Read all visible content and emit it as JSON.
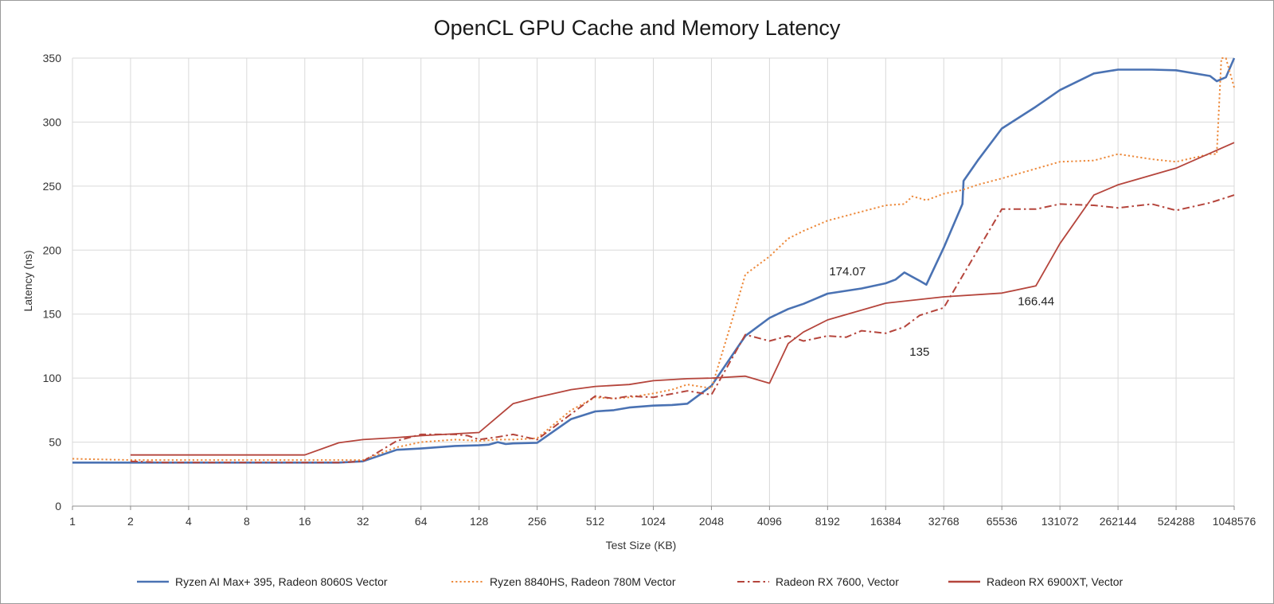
{
  "chart_data": {
    "type": "line",
    "title": "OpenCL GPU Cache and Memory Latency",
    "xlabel": "Test Size (KB)",
    "ylabel": "Latency (ns)",
    "xscale": "log2",
    "xlim": [
      1,
      1048576
    ],
    "ylim": [
      0,
      350
    ],
    "yticks": [
      0,
      50,
      100,
      150,
      200,
      250,
      300,
      350
    ],
    "xticks": [
      1,
      2,
      4,
      8,
      16,
      32,
      64,
      128,
      256,
      512,
      1024,
      2048,
      4096,
      8192,
      16384,
      32768,
      65536,
      131072,
      262144,
      524288,
      1048576
    ],
    "xtick_labels": [
      "1",
      "2",
      "4",
      "8",
      "16",
      "32",
      "64",
      "128",
      "256",
      "512",
      "1024",
      "2048",
      "4096",
      "8192",
      "16384",
      "32768",
      "65536",
      "131072",
      "262144",
      "524288",
      "1048576"
    ],
    "grid": true,
    "legend_position": "bottom",
    "series": [
      {
        "name": "Ryzen AI Max+ 395, Radeon 8060S Vector",
        "color": "#4a72b3",
        "style": "solid",
        "x": [
          1,
          2,
          4,
          8,
          16,
          24,
          32,
          48,
          64,
          96,
          128,
          144,
          160,
          176,
          192,
          256,
          384,
          512,
          640,
          768,
          1024,
          1280,
          1536,
          2048,
          3072,
          4096,
          5120,
          6144,
          8192,
          12288,
          16384,
          18432,
          20480,
          24576,
          26624,
          32768,
          40960,
          41500,
          49152,
          65536,
          98304,
          131072,
          196608,
          262144,
          393216,
          524288,
          786432,
          851968,
          950000,
          1048576
        ],
        "y": [
          34,
          34,
          34,
          34,
          34,
          34,
          35,
          44,
          45,
          47,
          47.5,
          48,
          50,
          48.5,
          49,
          49.5,
          68,
          74,
          75,
          77,
          78.5,
          79,
          80,
          94,
          133,
          147,
          154,
          158,
          166,
          170,
          174.07,
          177,
          182.5,
          176,
          173,
          202,
          236,
          254,
          270,
          295,
          312,
          325,
          338,
          341,
          341,
          340.5,
          336,
          332,
          335,
          350
        ]
      },
      {
        "name": "Ryzen 8840HS, Radeon 780M Vector",
        "color": "#ed8a3c",
        "style": "dotted",
        "x": [
          1,
          2,
          4,
          8,
          16,
          24,
          32,
          48,
          64,
          96,
          128,
          160,
          192,
          256,
          384,
          512,
          640,
          768,
          1024,
          1280,
          1536,
          2048,
          2560,
          3072,
          4096,
          5120,
          6144,
          8192,
          12288,
          16384,
          20480,
          22528,
          26624,
          32768,
          40960,
          49152,
          65536,
          131072,
          196608,
          262144,
          393216,
          524288,
          786432,
          851968,
          900000,
          950000,
          1048576
        ],
        "y": [
          37,
          36,
          36,
          36,
          36,
          36,
          36,
          46,
          50,
          52,
          51,
          52,
          52,
          53,
          75,
          85,
          84,
          85,
          88,
          91,
          95,
          92,
          140,
          181,
          195,
          209,
          215,
          223,
          230,
          235,
          236,
          242,
          239,
          244,
          247,
          251,
          256,
          269,
          270,
          275,
          271,
          269,
          275,
          275,
          350,
          350,
          327
        ]
      },
      {
        "name": "Radeon RX 7600, Vector",
        "color": "#b5453c",
        "style": "dashdot",
        "x": [
          2,
          3,
          4,
          8,
          16,
          24,
          32,
          48,
          64,
          96,
          112,
          128,
          160,
          192,
          256,
          384,
          512,
          640,
          768,
          1024,
          1536,
          2048,
          3072,
          4096,
          5120,
          6144,
          8192,
          10240,
          12288,
          16384,
          20480,
          24576,
          32768,
          49152,
          65536,
          98304,
          131072,
          196608,
          262144,
          393216,
          524288,
          786432,
          1048576
        ],
        "y": [
          35,
          34,
          34,
          34,
          34,
          34,
          35,
          51,
          56,
          56,
          55,
          52,
          54,
          56,
          52,
          72,
          86,
          84,
          86,
          85,
          90,
          87,
          134,
          129,
          133,
          129,
          133,
          132,
          137,
          135,
          140,
          149,
          155,
          200,
          232,
          232,
          236,
          235,
          233,
          236,
          231,
          237,
          243
        ]
      },
      {
        "name": "Radeon RX 6900XT, Vector",
        "color": "#b5453c",
        "style": "solid",
        "x": [
          2,
          4,
          8,
          16,
          24,
          32,
          48,
          64,
          96,
          128,
          192,
          256,
          384,
          512,
          768,
          1024,
          1536,
          2048,
          3072,
          4096,
          5120,
          6144,
          8192,
          16384,
          32768,
          65536,
          98304,
          131072,
          196608,
          262144,
          524288,
          1048576
        ],
        "y": [
          40,
          40,
          40,
          40,
          49.5,
          52,
          53.5,
          55,
          56.5,
          57.5,
          80,
          85,
          91,
          93.5,
          95,
          98,
          99.5,
          100,
          101.5,
          96,
          127,
          136,
          145.5,
          158.5,
          163.5,
          166.44,
          172,
          205,
          243,
          251,
          264,
          284
        ]
      }
    ],
    "annotations": [
      {
        "text": "174.07",
        "x": 16384,
        "y": 174.07,
        "position": "upper-left"
      },
      {
        "text": "166.44",
        "x": 65536,
        "y": 166.44,
        "position": "lower-right"
      },
      {
        "text": "135",
        "x": 16384,
        "y": 135,
        "position": "lower-right"
      }
    ]
  }
}
